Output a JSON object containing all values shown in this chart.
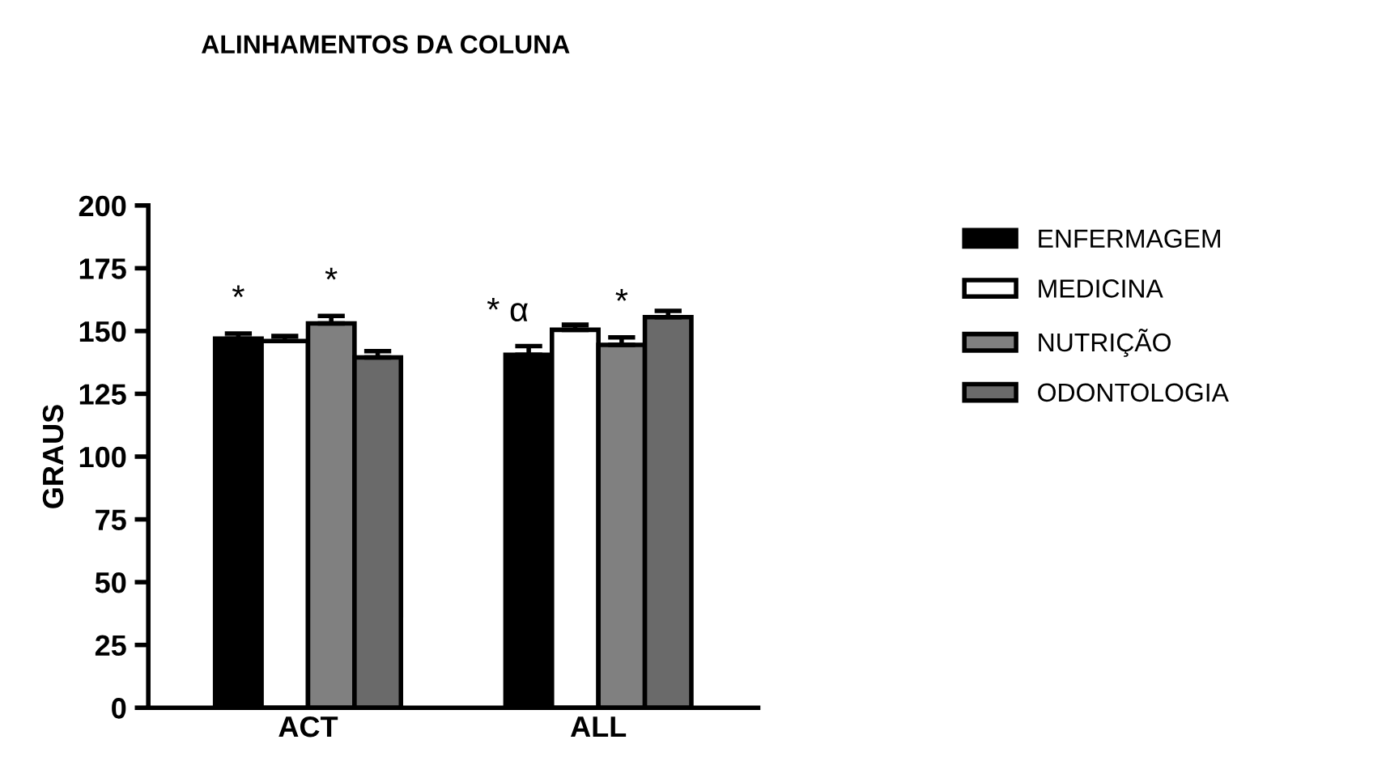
{
  "chart_data": {
    "type": "bar",
    "title": "ALINHAMENTOS DA COLUNA",
    "ylabel": "GRAUS",
    "categories": [
      "ACT",
      "ALL"
    ],
    "series": [
      {
        "name": "ENFERMAGEM",
        "color": "#000000",
        "values": [
          147,
          140.5
        ],
        "errors": [
          2,
          3.5
        ]
      },
      {
        "name": "MEDICINA",
        "color": "#ffffff",
        "values": [
          146,
          150.5
        ],
        "errors": [
          2,
          2
        ]
      },
      {
        "name": "NUTRIÇÃO",
        "color": "#808080",
        "values": [
          153,
          144.5
        ],
        "errors": [
          3,
          3
        ]
      },
      {
        "name": "ODONTOLOGIA",
        "color": "#6a6a6a",
        "values": [
          139.5,
          155.5
        ],
        "errors": [
          2.5,
          2.5
        ]
      }
    ],
    "annotations": [
      "*",
      "*",
      "* α",
      "*"
    ],
    "ylim": [
      0,
      200
    ],
    "yticks": [
      0,
      25,
      50,
      75,
      100,
      125,
      150,
      175,
      200
    ],
    "grid": false,
    "legend": "right"
  }
}
